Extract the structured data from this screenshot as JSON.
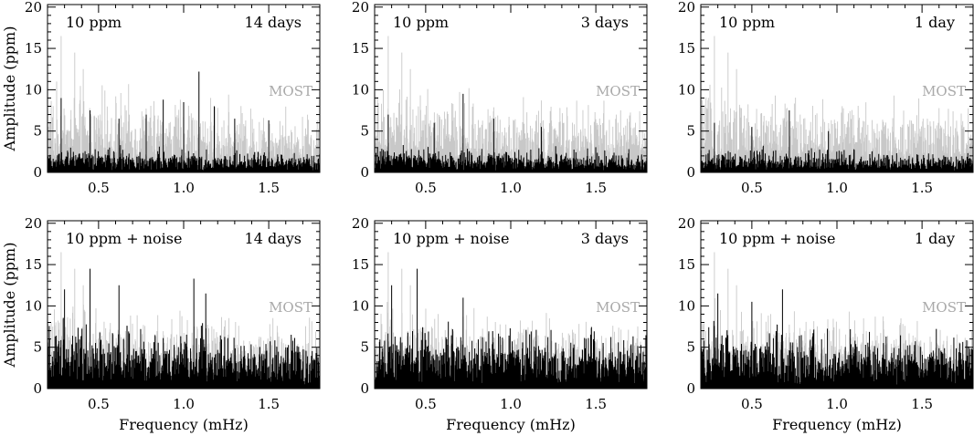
{
  "figure": {
    "ylabel": "Amplitude (ppm)",
    "xlabel": "Frequency (mHz)",
    "overlay_label": "MOST",
    "colors": {
      "most_series": "#c8c8c8",
      "simulated_series": "#000000",
      "overlay_label": "#a9a9a9"
    }
  },
  "chart_data": [
    {
      "type": "line",
      "row": 0,
      "col": 0,
      "left_text": "10 ppm",
      "right_text": "14 days",
      "xlim": [
        0.2,
        1.8
      ],
      "ylim": [
        0,
        20
      ],
      "xticks": [
        "0.5",
        "1.0",
        "1.5"
      ],
      "yticks": [
        "0",
        "5",
        "10",
        "15",
        "20"
      ],
      "series": [
        {
          "name": "MOST",
          "color": "#c8c8c8",
          "baseline": 5.5,
          "noise": 3.5,
          "spikes": [
            [
              0.28,
              16.5
            ],
            [
              0.36,
              14.5
            ],
            [
              0.41,
              12.5
            ]
          ]
        },
        {
          "color": "#000000",
          "baseline": 1.5,
          "noise": 1.5,
          "spikes": [
            [
              0.28,
              9.0
            ],
            [
              0.45,
              7.5
            ],
            [
              0.62,
              6.5
            ],
            [
              0.78,
              7.0
            ],
            [
              0.88,
              8.8
            ],
            [
              1.0,
              8.5
            ],
            [
              1.09,
              12.2
            ],
            [
              1.18,
              8.0
            ],
            [
              1.3,
              6.5
            ],
            [
              1.5,
              6.3
            ]
          ]
        }
      ]
    },
    {
      "type": "line",
      "row": 0,
      "col": 1,
      "left_text": "10 ppm",
      "right_text": "3 days",
      "xlim": [
        0.2,
        1.8
      ],
      "ylim": [
        0,
        20
      ],
      "xticks": [
        "0.5",
        "1.0",
        "1.5"
      ],
      "yticks": [
        "0",
        "5",
        "10",
        "15",
        "20"
      ],
      "series": [
        {
          "name": "MOST",
          "color": "#c8c8c8",
          "baseline": 5.5,
          "noise": 3.5,
          "spikes": [
            [
              0.28,
              16.5
            ],
            [
              0.36,
              14.5
            ],
            [
              0.41,
              12.5
            ]
          ]
        },
        {
          "color": "#000000",
          "baseline": 1.5,
          "noise": 1.5,
          "spikes": [
            [
              0.28,
              7.0
            ],
            [
              0.55,
              6.0
            ],
            [
              0.72,
              9.5
            ],
            [
              0.9,
              6.5
            ],
            [
              1.18,
              5.5
            ]
          ]
        }
      ]
    },
    {
      "type": "line",
      "row": 0,
      "col": 2,
      "left_text": "10 ppm",
      "right_text": "1 day",
      "xlim": [
        0.2,
        1.8
      ],
      "ylim": [
        0,
        20
      ],
      "xticks": [
        "0.5",
        "1.0",
        "1.5"
      ],
      "yticks": [
        "0",
        "5",
        "10",
        "15",
        "20"
      ],
      "series": [
        {
          "name": "MOST",
          "color": "#c8c8c8",
          "baseline": 5.5,
          "noise": 3.5,
          "spikes": [
            [
              0.28,
              16.5
            ],
            [
              0.36,
              14.5
            ],
            [
              0.41,
              12.5
            ]
          ]
        },
        {
          "color": "#000000",
          "baseline": 1.5,
          "noise": 1.3,
          "spikes": [
            [
              0.28,
              6.0
            ],
            [
              0.5,
              5.5
            ],
            [
              0.72,
              7.5
            ],
            [
              0.95,
              5.0
            ]
          ]
        }
      ]
    },
    {
      "type": "line",
      "row": 1,
      "col": 0,
      "left_text": "10 ppm + noise",
      "right_text": "14 days",
      "xlim": [
        0.2,
        1.8
      ],
      "ylim": [
        0,
        20
      ],
      "xticks": [
        "0.5",
        "1.0",
        "1.5"
      ],
      "yticks": [
        "0",
        "5",
        "10",
        "15",
        "20"
      ],
      "series": [
        {
          "name": "MOST",
          "color": "#c8c8c8",
          "baseline": 5.5,
          "noise": 3.5,
          "spikes": [
            [
              0.28,
              16.5
            ],
            [
              0.36,
              14.5
            ],
            [
              0.41,
              12.5
            ]
          ]
        },
        {
          "color": "#000000",
          "baseline": 3.5,
          "noise": 4.0,
          "spikes": [
            [
              0.45,
              14.5
            ],
            [
              0.62,
              12.5
            ],
            [
              1.06,
              13.3
            ],
            [
              1.13,
              11.5
            ],
            [
              0.3,
              12.0
            ]
          ]
        }
      ]
    },
    {
      "type": "line",
      "row": 1,
      "col": 1,
      "left_text": "10 ppm + noise",
      "right_text": "3 days",
      "xlim": [
        0.2,
        1.8
      ],
      "ylim": [
        0,
        20
      ],
      "xticks": [
        "0.5",
        "1.0",
        "1.5"
      ],
      "yticks": [
        "0",
        "5",
        "10",
        "15",
        "20"
      ],
      "series": [
        {
          "name": "MOST",
          "color": "#c8c8c8",
          "baseline": 5.5,
          "noise": 3.5,
          "spikes": [
            [
              0.28,
              16.5
            ],
            [
              0.36,
              14.5
            ],
            [
              0.41,
              12.5
            ]
          ]
        },
        {
          "color": "#000000",
          "baseline": 3.5,
          "noise": 4.0,
          "spikes": [
            [
              0.45,
              14.5
            ],
            [
              0.3,
              12.5
            ],
            [
              0.72,
              11.0
            ]
          ]
        }
      ]
    },
    {
      "type": "line",
      "row": 1,
      "col": 2,
      "left_text": "10 ppm + noise",
      "right_text": "1 day",
      "xlim": [
        0.2,
        1.8
      ],
      "ylim": [
        0,
        20
      ],
      "xticks": [
        "0.5",
        "1.0",
        "1.5"
      ],
      "yticks": [
        "0",
        "5",
        "10",
        "15",
        "20"
      ],
      "series": [
        {
          "name": "MOST",
          "color": "#c8c8c8",
          "baseline": 5.5,
          "noise": 3.5,
          "spikes": [
            [
              0.28,
              16.5
            ],
            [
              0.36,
              14.5
            ],
            [
              0.41,
              12.5
            ]
          ]
        },
        {
          "color": "#000000",
          "baseline": 3.5,
          "noise": 4.0,
          "spikes": [
            [
              0.3,
              11.5
            ],
            [
              0.68,
              12.0
            ],
            [
              0.5,
              10.5
            ]
          ]
        }
      ]
    }
  ]
}
